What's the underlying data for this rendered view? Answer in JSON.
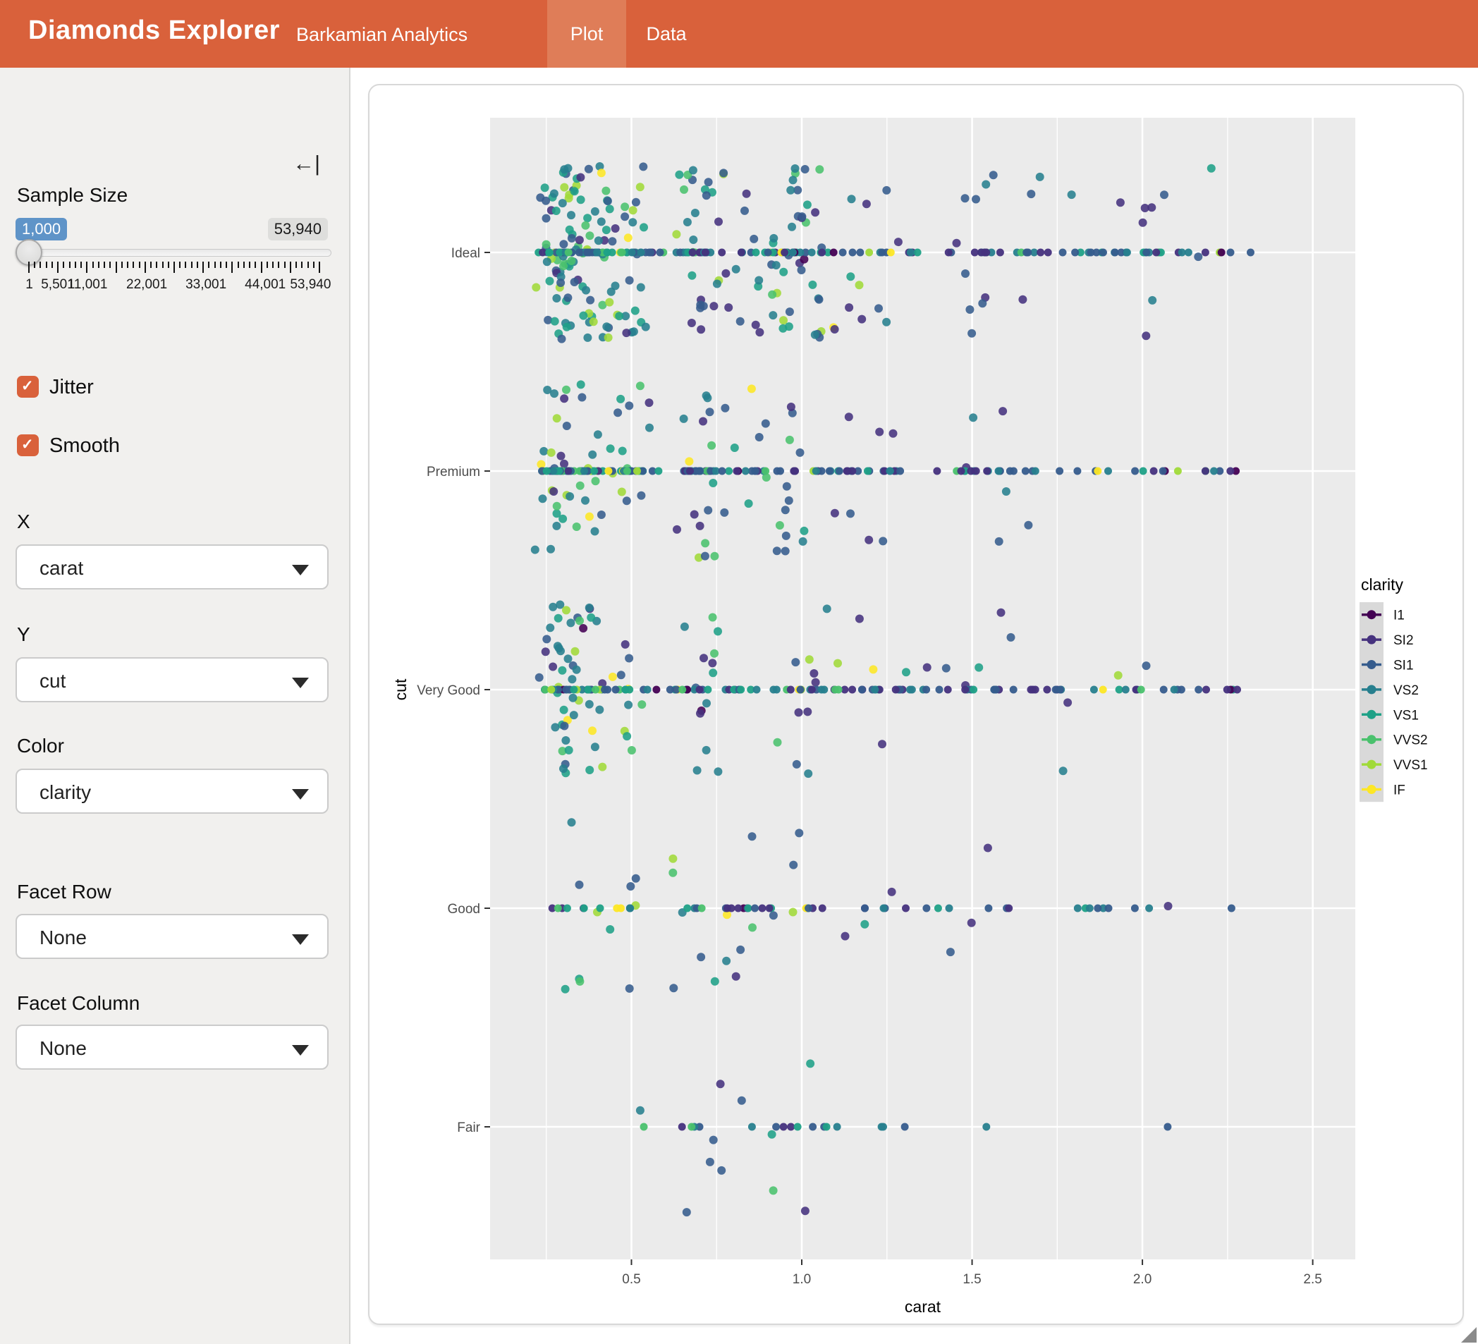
{
  "header": {
    "title": "Diamonds Explorer",
    "subtitle": "Barkamian Analytics",
    "bg": "#D9613B",
    "active_tab_bg": "#DF7D58",
    "text_color": "#FFFFFF",
    "tabs": [
      {
        "label": "Plot",
        "active": true
      },
      {
        "label": "Data",
        "active": false
      }
    ]
  },
  "sidebar": {
    "collapse_icon": "←|",
    "sample_size": {
      "label": "Sample Size",
      "value": 1000,
      "min": 1,
      "max": 53940,
      "value_label": "1,000",
      "max_label": "53,940",
      "badge_blue": "#5F94C8",
      "tick_labels": [
        "1",
        "5,501",
        "11,001",
        "22,001",
        "33,001",
        "44,001",
        "53,940"
      ],
      "tick_positions": [
        0,
        0.102,
        0.204,
        0.408,
        0.612,
        0.816,
        1.0
      ]
    },
    "checkboxes": [
      {
        "label": "Jitter",
        "checked": true
      },
      {
        "label": "Smooth",
        "checked": true
      }
    ],
    "checkbox_color": "#D9613B",
    "selects": [
      {
        "label": "X",
        "value": "carat"
      },
      {
        "label": "Y",
        "value": "cut"
      },
      {
        "label": "Color",
        "value": "clarity"
      },
      {
        "label": "Facet Row",
        "value": "None"
      },
      {
        "label": "Facet Column",
        "value": "None"
      }
    ]
  },
  "chart_data": {
    "type": "scatter",
    "subtype": "jittered-categorical-scatter",
    "xlabel": "carat",
    "ylabel": "cut",
    "x_ticks": [
      0.5,
      1.0,
      1.5,
      2.0,
      2.5
    ],
    "x_minor_ticks": [
      0.25,
      0.75,
      1.25,
      1.75,
      2.25
    ],
    "xlim": [
      0.085,
      2.625
    ],
    "categories": [
      "Ideal",
      "Premium",
      "Very Good",
      "Good",
      "Fair"
    ],
    "grid": true,
    "panel_bg": "#EBEBEB",
    "grid_color": "#FFFFFF",
    "tick_label_color": "#4D4D4D",
    "axis_title_color": "#000000",
    "legend": {
      "title": "clarity",
      "position": "right",
      "key_bg": "#D9D9D9",
      "entries": [
        {
          "label": "I1",
          "color": "#440154"
        },
        {
          "label": "SI2",
          "color": "#46327E"
        },
        {
          "label": "SI1",
          "color": "#365C8D"
        },
        {
          "label": "VS2",
          "color": "#277F8E"
        },
        {
          "label": "VS1",
          "color": "#1FA187"
        },
        {
          "label": "VVS2",
          "color": "#4AC16D"
        },
        {
          "label": "VVS1",
          "color": "#A0DA39"
        },
        {
          "label": "IF",
          "color": "#FDE725"
        }
      ]
    },
    "generation": {
      "seed": 20240613,
      "marker_radius": 6,
      "jitter_height": 0.4,
      "carat_clamp": [
        0.2,
        2.51
      ],
      "per_category": [
        {
          "cut": "Ideal",
          "n": 398,
          "on_line": 165,
          "mixture": "fine"
        },
        {
          "cut": "Premium",
          "n": 258,
          "on_line": 160,
          "mixture": "fine"
        },
        {
          "cut": "Very Good",
          "n": 228,
          "on_line": 130,
          "mixture": "fine"
        },
        {
          "cut": "Good",
          "n": 86,
          "on_line": 52,
          "mixture": "coarse"
        },
        {
          "cut": "Fair",
          "n": 30,
          "on_line": 19,
          "mixture": "coarse"
        }
      ],
      "carat_mixtures": {
        "fine": {
          "clusters": [
            [
              0.3,
              0.035,
              30
            ],
            [
              0.4,
              0.04,
              12
            ],
            [
              0.5,
              0.035,
              10
            ],
            [
              0.7,
              0.045,
              14
            ],
            [
              0.9,
              0.05,
              8
            ],
            [
              1.0,
              0.05,
              10
            ],
            [
              1.2,
              0.07,
              6
            ],
            [
              1.5,
              0.05,
              5
            ],
            [
              1.7,
              0.09,
              2.5
            ],
            [
              2.0,
              0.05,
              2.5
            ],
            [
              2.25,
              0.12,
              0.8
            ]
          ],
          "uniform": [
            0.2,
            2.5,
            0.7
          ]
        },
        "coarse": {
          "clusters": [
            [
              0.3,
              0.035,
              8
            ],
            [
              0.4,
              0.04,
              6
            ],
            [
              0.5,
              0.04,
              10
            ],
            [
              0.7,
              0.05,
              22
            ],
            [
              0.8,
              0.05,
              10
            ],
            [
              0.9,
              0.05,
              12
            ],
            [
              1.0,
              0.05,
              16
            ],
            [
              1.2,
              0.08,
              8
            ],
            [
              1.5,
              0.06,
              5
            ],
            [
              2.0,
              0.06,
              2
            ]
          ],
          "uniform": [
            0.2,
            2.5,
            1.5
          ]
        }
      },
      "line_uniform_blend": 0.45,
      "line_x_range": [
        0.25,
        2.32
      ],
      "clarity_bands": [
        {
          "max_carat": 0.55,
          "weights": [
            0.5,
            8,
            20,
            26,
            18,
            13,
            10,
            4.5
          ]
        },
        {
          "max_carat": 1.1,
          "weights": [
            1.5,
            18,
            27,
            24,
            15,
            8,
            4,
            2.5
          ]
        },
        {
          "max_carat": 9,
          "weights": [
            3,
            30,
            30,
            20,
            12,
            3,
            1.5,
            0.5
          ]
        }
      ]
    }
  }
}
